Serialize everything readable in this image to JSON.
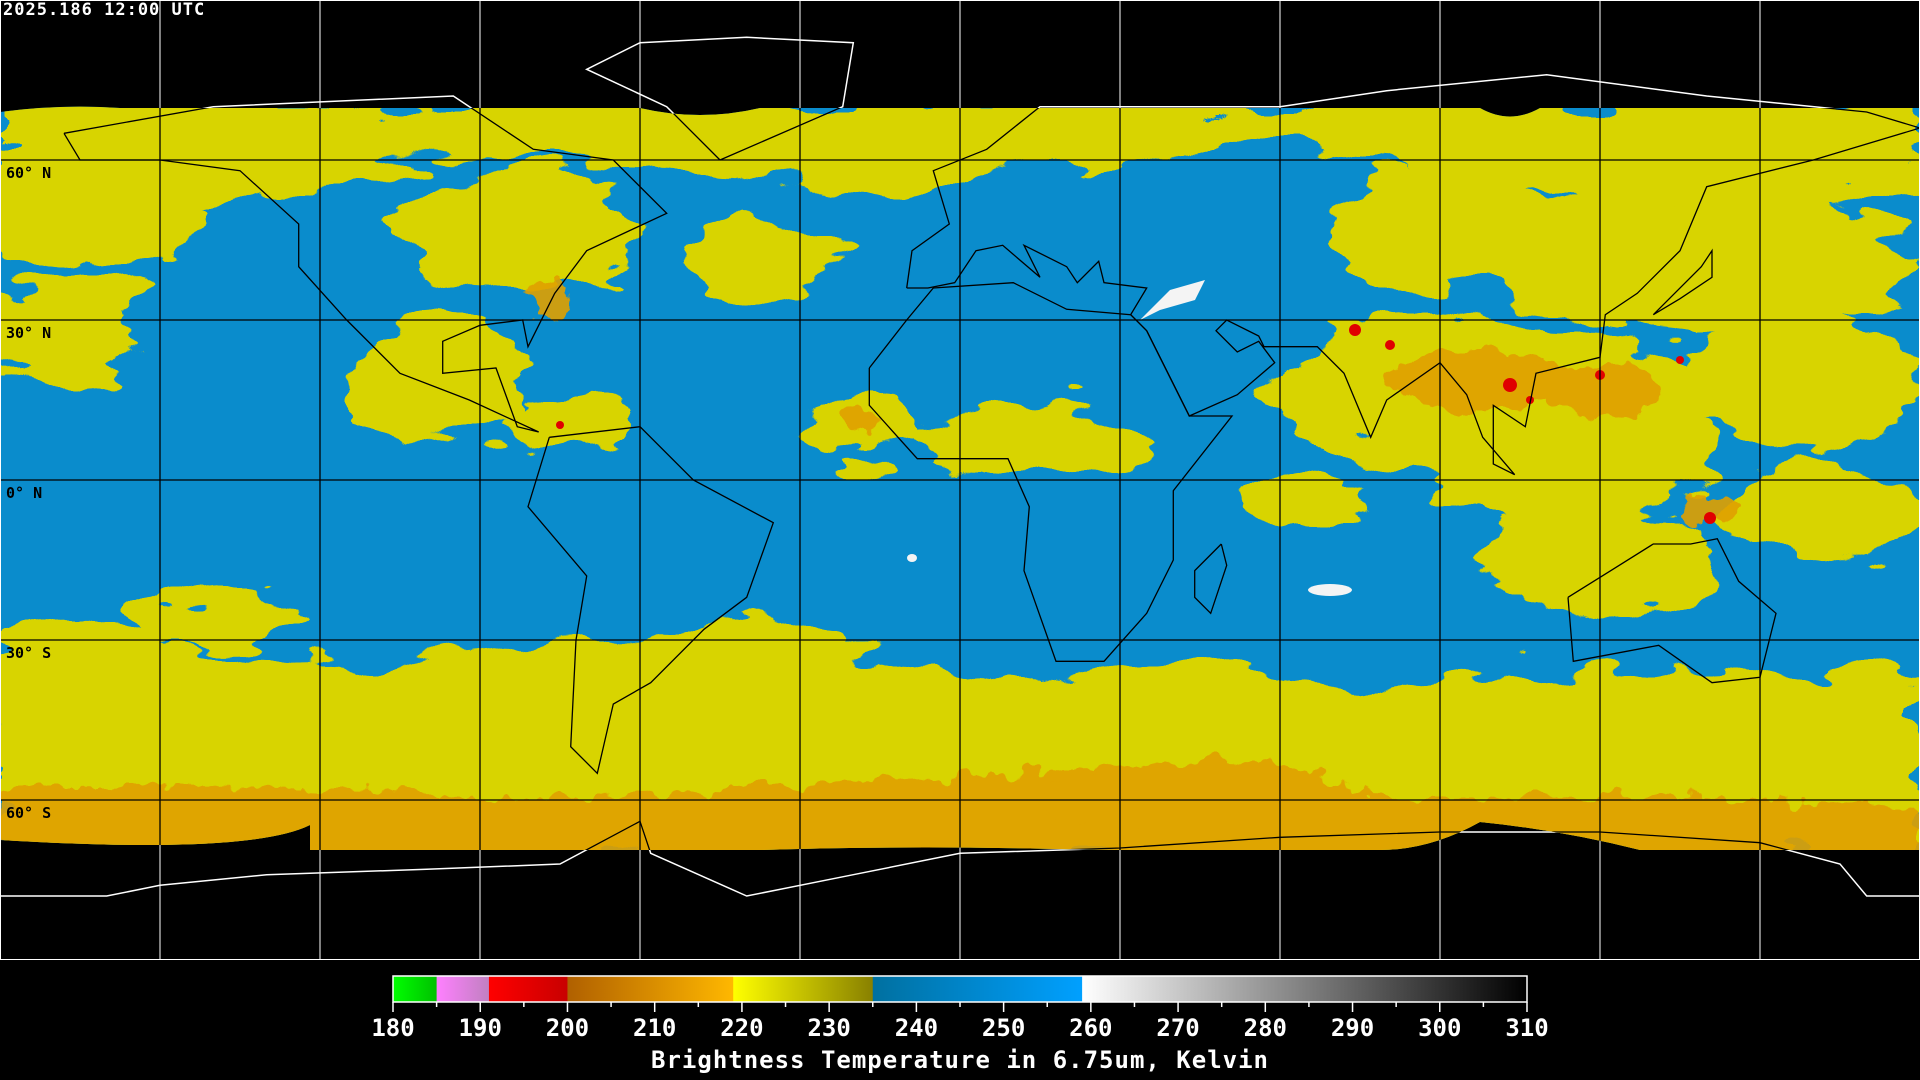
{
  "header": {
    "timestamp": "2025.186 12:00 UTC"
  },
  "map": {
    "projection": "equirectangular",
    "longitude_range": [
      -180,
      180
    ],
    "latitude_range": [
      -90,
      90
    ],
    "grid_spacing_degrees": 30,
    "latitude_labels": [
      {
        "lat": 60,
        "text": "60° N"
      },
      {
        "lat": 30,
        "text": "30° N"
      },
      {
        "lat": 0,
        "text": "0° N"
      },
      {
        "lat": -30,
        "text": "30° S"
      },
      {
        "lat": -60,
        "text": "60° S"
      }
    ],
    "colors": {
      "background": "#000000",
      "clear_sky": "#0a8ccc",
      "moist": "#d8d400",
      "cold": "#e0a000",
      "deep_convection": "#e00000",
      "coastline_on_image": "#000000",
      "coastline_off_image": "#ffffff"
    }
  },
  "colorbar": {
    "title": "Brightness Temperature in 6.75um, Kelvin",
    "range": [
      180,
      310
    ],
    "tick_labels": [
      "180",
      "190",
      "200",
      "210",
      "220",
      "230",
      "240",
      "250",
      "260",
      "270",
      "280",
      "290",
      "300",
      "310"
    ],
    "segments": [
      {
        "from": 180,
        "to": 185,
        "colors": [
          "#00ff00",
          "#00c000"
        ]
      },
      {
        "from": 185,
        "to": 191,
        "colors": [
          "#ff80ff",
          "#c080c0"
        ]
      },
      {
        "from": 191,
        "to": 200,
        "colors": [
          "#ff0000",
          "#c80000"
        ]
      },
      {
        "from": 200,
        "to": 219,
        "colors": [
          "#b06000",
          "#ffb800"
        ]
      },
      {
        "from": 219,
        "to": 235,
        "colors": [
          "#ffff00",
          "#888000"
        ]
      },
      {
        "from": 235,
        "to": 259,
        "colors": [
          "#0070a0",
          "#00a0ff"
        ]
      },
      {
        "from": 259,
        "to": 310,
        "colors": [
          "#ffffff",
          "#000000"
        ]
      }
    ]
  }
}
